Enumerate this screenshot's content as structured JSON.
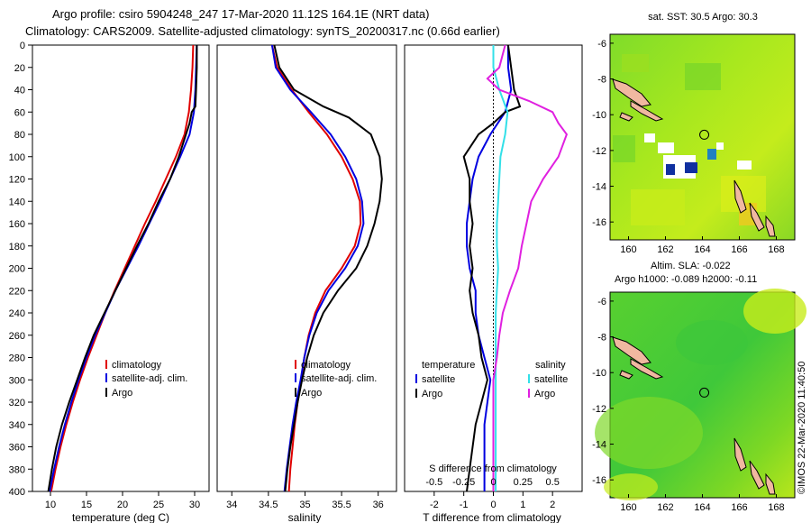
{
  "header": {
    "line1": "Argo profile: csiro 5904248_247 17-Mar-2020 11.12S 164.1E (NRT data)",
    "line2": "Climatology: CARS2009. Satellite-adjusted climatology: synTS_20200317.nc (0.66d earlier)"
  },
  "credit": "©IMOS 22-Mar-2020 11:40:50",
  "colors": {
    "climatology": "#e00000",
    "satellite": "#0000e0",
    "argo": "#000000",
    "sat_salinity": "#33e0e8",
    "salinity_diff": "#e020e0"
  },
  "chart_data": [
    {
      "type": "line",
      "panel": "temperature",
      "xlabel": "temperature (deg C)",
      "xlim": [
        7.5,
        32
      ],
      "xticks": [
        10,
        15,
        20,
        25,
        30
      ],
      "ylim": [
        400,
        0
      ],
      "yticks": [
        0,
        20,
        40,
        60,
        80,
        100,
        120,
        140,
        160,
        180,
        200,
        220,
        240,
        260,
        280,
        300,
        320,
        340,
        360,
        380,
        400
      ],
      "legend": [
        "climatology",
        "satellite-adj. clim.",
        "Argo"
      ],
      "series": [
        {
          "name": "climatology",
          "color": "#e00000",
          "depth": [
            0,
            20,
            40,
            60,
            80,
            100,
            120,
            140,
            160,
            180,
            200,
            220,
            240,
            260,
            280,
            300,
            320,
            340,
            360,
            380,
            400
          ],
          "values": [
            29.8,
            29.7,
            29.5,
            29.2,
            28.6,
            27.4,
            26.0,
            24.6,
            23.1,
            21.7,
            20.3,
            18.9,
            17.6,
            16.4,
            15.2,
            14.1,
            13.1,
            12.2,
            11.4,
            10.7,
            10.1
          ]
        },
        {
          "name": "satellite-adj. clim.",
          "color": "#0000e0",
          "depth": [
            0,
            20,
            40,
            60,
            80,
            100,
            120,
            140,
            160,
            180,
            200,
            220,
            240,
            260,
            280,
            300,
            320,
            340,
            360,
            380,
            400
          ],
          "values": [
            30.3,
            30.2,
            30.1,
            29.9,
            29.3,
            28.0,
            26.6,
            25.2,
            23.7,
            22.2,
            20.6,
            19.0,
            17.6,
            16.2,
            15.0,
            13.9,
            12.9,
            12.0,
            11.2,
            10.5,
            9.9
          ]
        },
        {
          "name": "Argo",
          "color": "#000000",
          "depth": [
            0,
            20,
            40,
            55,
            60,
            70,
            80,
            100,
            120,
            140,
            160,
            180,
            200,
            220,
            240,
            260,
            280,
            300,
            320,
            340,
            360,
            380,
            400
          ],
          "values": [
            30.3,
            30.3,
            30.2,
            30.1,
            29.6,
            29.3,
            28.8,
            27.8,
            26.6,
            25.0,
            23.6,
            22.0,
            20.5,
            19.0,
            17.5,
            16.0,
            14.8,
            13.7,
            12.6,
            11.6,
            10.8,
            10.2,
            9.7
          ]
        }
      ]
    },
    {
      "type": "line",
      "panel": "salinity",
      "xlabel": "salinity",
      "xlim": [
        33.8,
        36.25
      ],
      "xticks": [
        34,
        34.5,
        35,
        35.5,
        36
      ],
      "xtick_labels": [
        "34",
        "34.5",
        "35",
        "35.5",
        "36"
      ],
      "ylim": [
        400,
        0
      ],
      "legend": [
        "climatology",
        "satellite-adj. clim.",
        "Argo"
      ],
      "series": [
        {
          "name": "climatology",
          "color": "#e00000",
          "depth": [
            0,
            20,
            40,
            60,
            80,
            100,
            120,
            140,
            160,
            180,
            200,
            220,
            240,
            260,
            280,
            300,
            320,
            340,
            360,
            380,
            400
          ],
          "values": [
            34.55,
            34.62,
            34.82,
            35.05,
            35.3,
            35.5,
            35.65,
            35.75,
            35.76,
            35.68,
            35.5,
            35.28,
            35.14,
            35.05,
            34.99,
            34.95,
            34.9,
            34.86,
            34.83,
            34.8,
            34.78
          ]
        },
        {
          "name": "satellite-adj. clim.",
          "color": "#0000e0",
          "depth": [
            0,
            20,
            40,
            60,
            80,
            100,
            120,
            140,
            160,
            180,
            200,
            220,
            240,
            260,
            280,
            300,
            320,
            340,
            360,
            380,
            400
          ],
          "values": [
            34.55,
            34.6,
            34.8,
            35.08,
            35.35,
            35.55,
            35.7,
            35.78,
            35.8,
            35.72,
            35.55,
            35.32,
            35.16,
            35.06,
            34.99,
            34.94,
            34.88,
            34.83,
            34.79,
            34.75,
            34.72
          ]
        },
        {
          "name": "Argo",
          "color": "#000000",
          "depth": [
            0,
            20,
            40,
            55,
            65,
            80,
            100,
            120,
            140,
            160,
            180,
            200,
            220,
            240,
            260,
            280,
            300,
            320,
            340,
            360,
            380,
            400
          ],
          "values": [
            34.58,
            34.65,
            34.85,
            35.25,
            35.6,
            35.9,
            36.02,
            36.05,
            36.02,
            35.95,
            35.85,
            35.7,
            35.45,
            35.25,
            35.12,
            35.03,
            34.96,
            34.9,
            34.85,
            34.8,
            34.76,
            34.73
          ]
        }
      ]
    },
    {
      "type": "line",
      "panel": "difference",
      "xlabel": "T difference from climatology",
      "top_axis_label": "S difference from climatology",
      "xlim": [
        -3,
        3
      ],
      "xticks": [
        -2,
        -1,
        0,
        1,
        2
      ],
      "s_xticks": [
        -0.5,
        -0.25,
        0,
        0.25,
        0.5
      ],
      "s_xtick_labels": [
        "-0.5",
        "-0.25",
        "0",
        "0.25",
        "0.5"
      ],
      "ylim": [
        400,
        0
      ],
      "legend_temperature_title": "temperature",
      "legend_salinity_title": "salinity",
      "legend_temperature": [
        "satellite",
        "Argo"
      ],
      "legend_salinity": [
        "satellite",
        "Argo"
      ],
      "series": [
        {
          "name": "temperature satellite",
          "color": "#0000e0",
          "depth": [
            0,
            20,
            40,
            60,
            80,
            100,
            120,
            140,
            160,
            180,
            200,
            220,
            240,
            260,
            280,
            300,
            320,
            340,
            360,
            380,
            400
          ],
          "values": [
            0.5,
            0.5,
            0.6,
            0.4,
            -0.1,
            -0.5,
            -0.7,
            -0.8,
            -0.9,
            -0.9,
            -0.8,
            -0.6,
            -0.6,
            -0.5,
            -0.3,
            -0.1,
            -0.2,
            -0.3,
            -0.3,
            -0.3,
            -0.3
          ]
        },
        {
          "name": "temperature Argo",
          "color": "#000000",
          "depth": [
            0,
            20,
            40,
            55,
            60,
            70,
            80,
            100,
            120,
            140,
            160,
            180,
            200,
            220,
            240,
            260,
            280,
            300,
            320,
            340,
            360,
            380,
            400
          ],
          "values": [
            0.5,
            0.6,
            0.7,
            0.9,
            0.4,
            0.0,
            -0.5,
            -1.0,
            -0.8,
            -0.8,
            -0.7,
            -0.8,
            -0.7,
            -0.8,
            -0.7,
            -0.5,
            -0.4,
            -0.2,
            -0.4,
            -0.6,
            -0.7,
            -0.8,
            -0.9
          ]
        },
        {
          "name": "salinity satellite",
          "color": "#33e0e8",
          "depth": [
            0,
            20,
            40,
            60,
            80,
            100,
            120,
            140,
            160,
            180,
            200,
            220,
            240,
            260,
            280,
            300,
            320,
            340,
            360,
            380,
            400
          ],
          "values": [
            0.0,
            0.0,
            0.05,
            0.12,
            0.1,
            0.06,
            0.05,
            0.04,
            0.03,
            0.03,
            0.04,
            0.03,
            0.02,
            0.02,
            0.02,
            0.02,
            0.02,
            0.02,
            0.02,
            0.02,
            0.02
          ]
        },
        {
          "name": "salinity Argo",
          "color": "#e020e0",
          "depth": [
            0,
            20,
            30,
            40,
            50,
            60,
            70,
            80,
            100,
            120,
            140,
            160,
            180,
            200,
            220,
            240,
            260,
            280,
            300,
            320,
            340,
            360,
            380,
            400
          ],
          "values": [
            0.1,
            0.05,
            -0.05,
            0.05,
            0.3,
            0.5,
            0.55,
            0.62,
            0.55,
            0.42,
            0.32,
            0.28,
            0.24,
            0.21,
            0.14,
            0.08,
            0.05,
            0.03,
            0.0,
            0.0,
            0.0,
            0.0,
            0.0,
            0.0
          ]
        }
      ]
    },
    {
      "type": "heatmap",
      "panel": "sst_map",
      "title": "sat. SST: 30.5 Argo: 30.3",
      "xticks": [
        160,
        162,
        164,
        166,
        168
      ],
      "yticks": [
        -6,
        -8,
        -10,
        -12,
        -14,
        -16
      ],
      "xlim": [
        159,
        169
      ],
      "ylim": [
        -17,
        -5.5
      ],
      "marker": [
        164.1,
        -11.12
      ]
    },
    {
      "type": "heatmap",
      "panel": "sla_map",
      "title": "Altim. SLA: -0.022",
      "subtitle": "Argo h1000: -0.089 h2000: -0.11",
      "xticks": [
        160,
        162,
        164,
        166,
        168
      ],
      "yticks": [
        -6,
        -8,
        -10,
        -12,
        -14,
        -16
      ],
      "xlim": [
        159,
        169
      ],
      "ylim": [
        -17,
        -5.5
      ],
      "marker": [
        164.1,
        -11.12
      ]
    }
  ]
}
